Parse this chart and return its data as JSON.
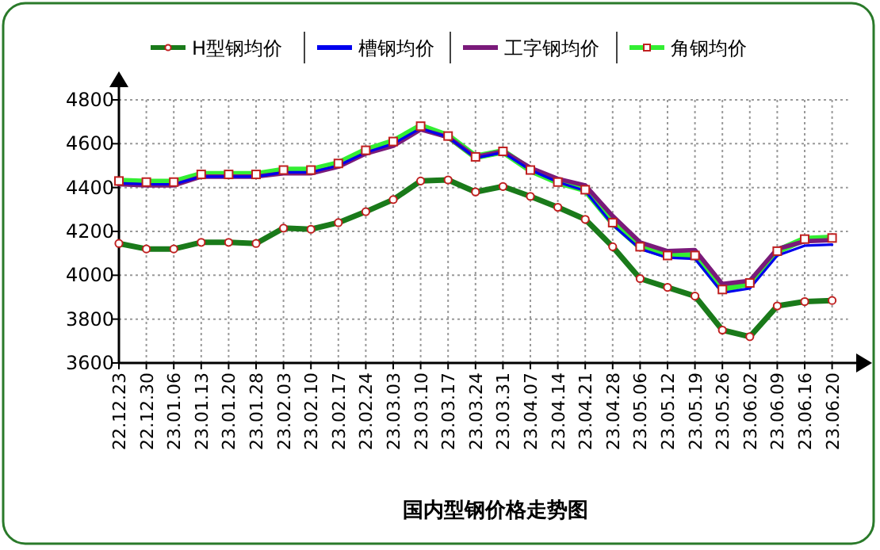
{
  "chart_data": {
    "type": "line",
    "title": "国内型钢价格走势图",
    "categories": [
      "22.12.23",
      "22.12.30",
      "23.01.06",
      "23.01.13",
      "23.01.20",
      "23.01.28",
      "23.02.03",
      "23.02.10",
      "23.02.17",
      "23.02.24",
      "23.03.03",
      "23.03.10",
      "23.03.17",
      "23.03.24",
      "23.03.31",
      "23.04.07",
      "23.04.14",
      "23.04.21",
      "23.04.28",
      "23.05.06",
      "23.05.12",
      "23.05.19",
      "23.05.26",
      "23.06.02",
      "23.06.09",
      "23.06.16",
      "23.06.20"
    ],
    "series": [
      {
        "name": "H型钢均价",
        "color": "#1a7a1a",
        "marker": "circle",
        "values": [
          4145,
          4120,
          4120,
          4150,
          4150,
          4145,
          4215,
          4210,
          4240,
          4290,
          4345,
          4430,
          4435,
          4380,
          4405,
          4360,
          4310,
          4255,
          4130,
          3985,
          3945,
          3905,
          3750,
          3720,
          3860,
          3880,
          3885
        ]
      },
      {
        "name": "槽钢均价",
        "color": "#0000ee",
        "marker": "none",
        "values": [
          4420,
          4415,
          4415,
          4450,
          4450,
          4450,
          4470,
          4470,
          4500,
          4560,
          4600,
          4670,
          4630,
          4535,
          4560,
          4480,
          4425,
          4385,
          4230,
          4120,
          4080,
          4075,
          3920,
          3940,
          4090,
          4135,
          4140
        ]
      },
      {
        "name": "工字钢均价",
        "color": "#7a1a7a",
        "marker": "none",
        "values": [
          4415,
          4410,
          4410,
          4450,
          4450,
          4450,
          4465,
          4465,
          4495,
          4555,
          4590,
          4665,
          4630,
          4540,
          4565,
          4490,
          4440,
          4410,
          4270,
          4150,
          4110,
          4115,
          3960,
          3975,
          4120,
          4155,
          4160
        ]
      },
      {
        "name": "角钢均价",
        "color": "#33ee33",
        "marker": "square",
        "values": [
          4430,
          4425,
          4425,
          4460,
          4460,
          4460,
          4480,
          4480,
          4510,
          4570,
          4610,
          4680,
          4635,
          4540,
          4565,
          4480,
          4425,
          4390,
          4240,
          4130,
          4090,
          4090,
          3935,
          3965,
          4110,
          4165,
          4170
        ]
      }
    ],
    "ylim": [
      3600,
      4800
    ],
    "yticks": [
      3600,
      3800,
      4000,
      4200,
      4400,
      4600,
      4800
    ],
    "grid": true,
    "legend": "top"
  }
}
